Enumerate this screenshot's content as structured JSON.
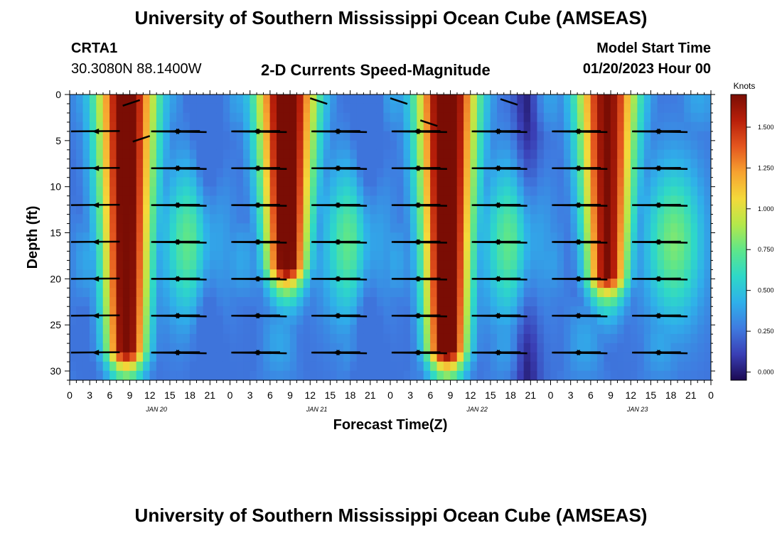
{
  "header": {
    "title": "University of Southern Mississippi Ocean Cube (AMSEAS)",
    "station": "CRTA1",
    "coords": "30.3080N  88.1400W",
    "chart_title": "2-D Currents Speed-Magnitude",
    "model_start_label": "Model Start Time",
    "model_start_value": "01/20/2023 Hour 00"
  },
  "footer": {
    "title": "University of Southern Mississippi Ocean Cube (AMSEAS)"
  },
  "chart_data": {
    "type": "heatmap",
    "title": "2-D Currents Speed-Magnitude",
    "xlabel": "Forecast Time(Z)",
    "ylabel": "Depth (ft)",
    "x_tick_labels": [
      "0",
      "3",
      "6",
      "9",
      "12",
      "15",
      "18",
      "21",
      "0",
      "3",
      "6",
      "9",
      "12",
      "15",
      "18",
      "21",
      "0",
      "3",
      "6",
      "9",
      "12",
      "15",
      "18",
      "21",
      "0",
      "3",
      "6",
      "9",
      "12",
      "15",
      "18",
      "21",
      "0"
    ],
    "date_labels": [
      "JAN 20",
      "JAN 21",
      "JAN 22",
      "JAN 23"
    ],
    "y_ticks": [
      0,
      5,
      10,
      15,
      20,
      25,
      30
    ],
    "ylim": [
      0,
      31
    ],
    "xlim_hours": [
      0,
      96
    ],
    "colorbar": {
      "label": "Knots",
      "ticks": [
        "0.000",
        "0.250",
        "0.500",
        "0.750",
        "1.000",
        "1.250",
        "1.500"
      ],
      "range": [
        -0.05,
        1.7
      ],
      "colors": [
        "#1b0a52",
        "#3a3fb5",
        "#3f7be0",
        "#2fb0ea",
        "#2ed8c8",
        "#5ee68a",
        "#b5e84a",
        "#f4d93a",
        "#f7a230",
        "#e4561f",
        "#b81f0a",
        "#7a0d04"
      ]
    },
    "arrow_depths_ft": [
      0,
      4,
      8,
      12,
      16,
      20,
      24,
      28
    ],
    "speed_bands": [
      {
        "center_hour": 8.5,
        "speed": 1.6,
        "depth_extent_ft": 28
      },
      {
        "center_hour": 32.5,
        "speed": 1.65,
        "depth_extent_ft": 19
      },
      {
        "center_hour": 56.5,
        "speed": 1.7,
        "depth_extent_ft": 28
      },
      {
        "center_hour": 80.5,
        "speed": 1.5,
        "depth_extent_ft": 20
      }
    ]
  }
}
